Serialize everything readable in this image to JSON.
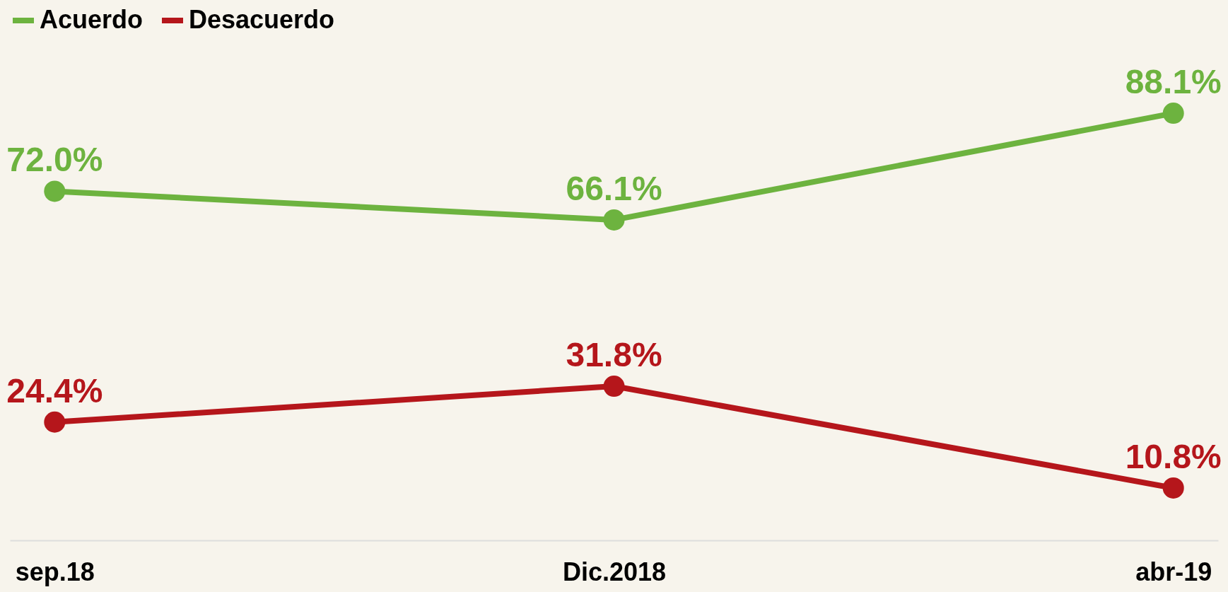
{
  "chart_data": {
    "type": "line",
    "categories": [
      "sep.18",
      "Dic.2018",
      "abr-19"
    ],
    "series": [
      {
        "name": "Acuerdo",
        "color": "#6db33f",
        "values": [
          72.0,
          66.1,
          88.1
        ],
        "value_labels": [
          "72.0%",
          "66.1%",
          "88.1%"
        ]
      },
      {
        "name": "Desacuerdo",
        "color": "#b5161b",
        "values": [
          24.4,
          31.8,
          10.8
        ],
        "value_labels": [
          "24.4%",
          "31.8%",
          "10.8%"
        ]
      }
    ],
    "tick_labels": "x",
    "marker": "circle",
    "line_style": "solid",
    "grid": false,
    "legend": "top left"
  }
}
